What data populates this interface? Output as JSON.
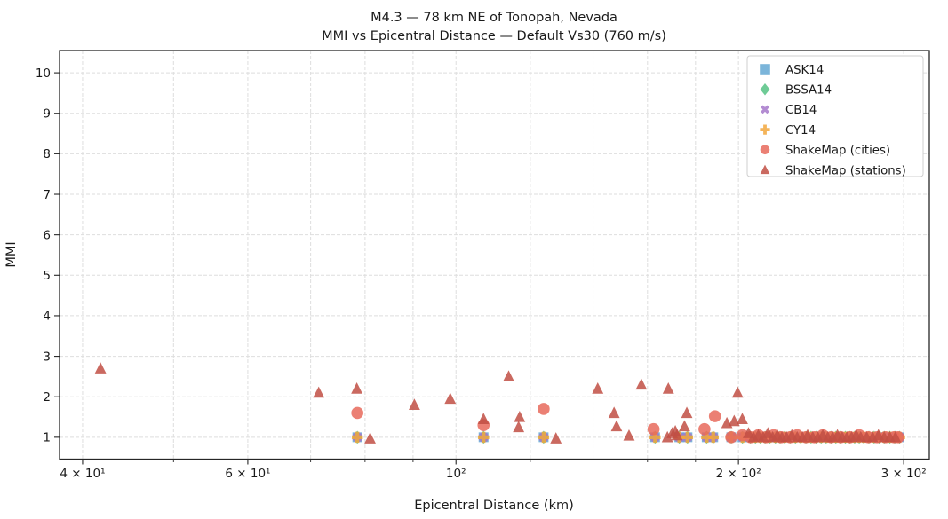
{
  "chart_data": {
    "type": "scatter",
    "title": "M4.3 — 78 km NE of Tonopah, Nevada",
    "subtitle": "MMI vs Epicentral Distance — Default Vs30 (760 m/s)",
    "xlabel": "Epicentral Distance (km)",
    "ylabel": "MMI",
    "x_scale": "log",
    "xlim": [
      37.8,
      319.5
    ],
    "ylim": [
      0.46,
      10.55
    ],
    "grid": true,
    "legend_position": "upper right",
    "x_major_ticks": [
      {
        "value": 40,
        "label": "4 × 10¹"
      },
      {
        "value": 60,
        "label": "6 × 10¹"
      },
      {
        "value": 100,
        "label": "10²"
      },
      {
        "value": 200,
        "label": "2 × 10²"
      },
      {
        "value": 300,
        "label": "3 × 10²"
      }
    ],
    "x_minor_ticks": [
      50,
      70,
      80,
      90,
      120,
      140,
      160,
      180
    ],
    "y_ticks": [
      1,
      2,
      3,
      4,
      5,
      6,
      7,
      8,
      9,
      10
    ],
    "gmpe_mmi": 1.0,
    "gmpe_distances_km": [
      78.5,
      107,
      124,
      163,
      173,
      176.5,
      185,
      188,
      196.5,
      202,
      206,
      208.5,
      211,
      213.5,
      216,
      219,
      221.5,
      224,
      227,
      230,
      233,
      236,
      239,
      242,
      245,
      248,
      251,
      254,
      257,
      260,
      263,
      266,
      269,
      272,
      275.5,
      279,
      282.5,
      286,
      290,
      293.5,
      297
    ],
    "series": [
      {
        "name": "ASK14",
        "marker": "square",
        "color": "#64a8d4",
        "points": "gmpe"
      },
      {
        "name": "BSSA14",
        "marker": "diamond",
        "color": "#55c284",
        "points": "gmpe"
      },
      {
        "name": "CB14",
        "marker": "x",
        "color": "#a678ca",
        "points": "gmpe"
      },
      {
        "name": "CY14",
        "marker": "plus",
        "color": "#f2a73d",
        "points": "gmpe"
      },
      {
        "name": "ShakeMap (cities)",
        "marker": "circle",
        "color": "#e76a5c",
        "points": [
          [
            78.5,
            1.6
          ],
          [
            107,
            1.3
          ],
          [
            124,
            1.7
          ],
          [
            162.4,
            1.2
          ],
          [
            184,
            1.2
          ],
          [
            188.8,
            1.52
          ],
          [
            196.5,
            1.0
          ],
          [
            202,
            1.05
          ],
          [
            206,
            1.0
          ],
          [
            210,
            1.05
          ],
          [
            214,
            1.0
          ],
          [
            218,
            1.05
          ],
          [
            222,
            1.0
          ],
          [
            227,
            1.0
          ],
          [
            231,
            1.05
          ],
          [
            236,
            1.0
          ],
          [
            241,
            1.0
          ],
          [
            246,
            1.05
          ],
          [
            251,
            1.0
          ],
          [
            257,
            1.0
          ],
          [
            263,
            1.0
          ],
          [
            269,
            1.05
          ],
          [
            275,
            1.0
          ],
          [
            281,
            1.0
          ],
          [
            287,
            1.0
          ],
          [
            293,
            1.0
          ],
          [
            296,
            1.0
          ]
        ]
      },
      {
        "name": "ShakeMap (stations)",
        "marker": "triangle",
        "color": "#c14f44",
        "points": [
          [
            41.8,
            2.7
          ],
          [
            71.4,
            2.1
          ],
          [
            78.4,
            2.2
          ],
          [
            81,
            0.97
          ],
          [
            90.3,
            1.8
          ],
          [
            98.6,
            1.95
          ],
          [
            107,
            1.45
          ],
          [
            113.8,
            2.5
          ],
          [
            116.6,
            1.25
          ],
          [
            116.9,
            1.5
          ],
          [
            127.8,
            0.97
          ],
          [
            141.6,
            2.2
          ],
          [
            147.4,
            1.6
          ],
          [
            148.3,
            1.27
          ],
          [
            152.9,
            1.04
          ],
          [
            157.6,
            2.3
          ],
          [
            168,
            1.0
          ],
          [
            168.4,
            2.2
          ],
          [
            170,
            1.1
          ],
          [
            171.3,
            1.15
          ],
          [
            172,
            1.05
          ],
          [
            175.2,
            1.27
          ],
          [
            176.2,
            1.6
          ],
          [
            194.4,
            1.35
          ],
          [
            197.9,
            1.4
          ],
          [
            199.6,
            2.1
          ],
          [
            201.9,
            1.45
          ],
          [
            205,
            1.1
          ],
          [
            207.5,
            1.0
          ],
          [
            210,
            1.05
          ],
          [
            212.5,
            1.0
          ],
          [
            215,
            1.1
          ],
          [
            217.5,
            1.0
          ],
          [
            220,
            1.05
          ],
          [
            222.5,
            1.0
          ],
          [
            225,
            1.0
          ],
          [
            228,
            1.05
          ],
          [
            231,
            1.0
          ],
          [
            234,
            1.0
          ],
          [
            237,
            1.05
          ],
          [
            240,
            1.0
          ],
          [
            243,
            1.0
          ],
          [
            246,
            1.05
          ],
          [
            249,
            1.0
          ],
          [
            252,
            1.0
          ],
          [
            255,
            1.05
          ],
          [
            258,
            1.0
          ],
          [
            261,
            1.0
          ],
          [
            264,
            1.0
          ],
          [
            267,
            1.05
          ],
          [
            270,
            1.0
          ],
          [
            274,
            1.0
          ],
          [
            278,
            1.0
          ],
          [
            282,
            1.05
          ],
          [
            286,
            1.0
          ],
          [
            290,
            1.0
          ],
          [
            294,
            1.0
          ]
        ]
      }
    ]
  }
}
